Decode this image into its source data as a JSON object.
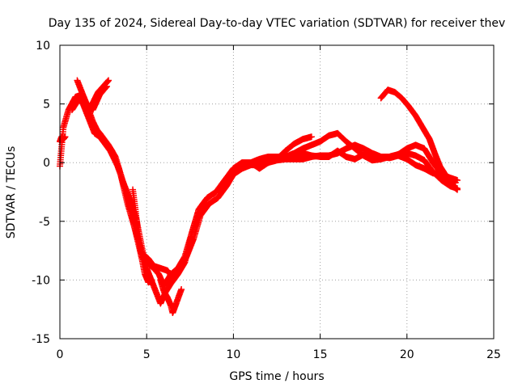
{
  "chart_data": {
    "type": "scatter",
    "title": "Day 135 of 2024, Sidereal Day-to-day VTEC variation (SDTVAR) for receiver thev",
    "xlabel": "GPS time / hours",
    "ylabel": "SDTVAR / TECUs",
    "xlim": [
      0,
      25
    ],
    "ylim": [
      -15,
      10
    ],
    "grid": true,
    "marker": "+",
    "color": "#ff0000",
    "x_ticks": [
      0,
      5,
      10,
      15,
      20,
      25
    ],
    "y_ticks": [
      -15,
      -10,
      -5,
      0,
      5,
      10
    ],
    "x_tick_labels": [
      "0",
      "5",
      "10",
      "15",
      "20",
      "25"
    ],
    "y_tick_labels": [
      "-15",
      "-10",
      "-5",
      "0",
      "5",
      "10"
    ],
    "series": [
      {
        "name": "track-1",
        "x": [
          0.0,
          0.2,
          0.5,
          0.9,
          1.3,
          1.7,
          2.2,
          2.8
        ],
        "y": [
          -0.3,
          3.0,
          4.5,
          5.6,
          5.8,
          4.5,
          6.0,
          7.0
        ]
      },
      {
        "name": "track-2",
        "x": [
          0.0,
          0.1,
          0.2,
          0.3
        ],
        "y": [
          1.8,
          2.2,
          2.0,
          2.2
        ]
      },
      {
        "name": "track-3",
        "x": [
          1.0,
          1.4,
          1.9,
          2.4,
          2.9,
          3.4,
          3.9,
          4.3,
          4.7,
          5.0,
          5.4,
          5.8,
          6.1,
          6.4,
          6.8,
          7.2,
          7.6,
          8.0,
          8.5,
          9.0,
          9.5,
          10.0,
          10.5,
          11.0,
          11.5,
          12.0,
          12.5,
          13.0,
          13.5,
          14.0,
          14.5
        ],
        "y": [
          7.0,
          5.5,
          3.5,
          2.0,
          1.0,
          -0.5,
          -3.0,
          -5.5,
          -7.5,
          -9.0,
          -10.5,
          -12.0,
          -11.0,
          -10.3,
          -9.5,
          -8.5,
          -6.0,
          -4.0,
          -3.0,
          -2.5,
          -1.5,
          -0.5,
          0.0,
          0.0,
          -0.5,
          0.0,
          0.3,
          1.0,
          1.6,
          2.0,
          2.2
        ]
      },
      {
        "name": "track-4",
        "x": [
          1.2,
          1.6,
          2.0,
          2.5,
          3.0,
          3.5,
          3.9,
          4.3,
          4.7,
          5.0,
          5.4,
          5.7,
          6.0,
          6.4,
          6.8,
          7.2,
          7.6,
          8.0,
          8.5,
          9.0,
          9.5,
          10.0,
          10.5,
          11.0,
          11.5,
          12.0,
          12.5,
          13.0,
          13.5,
          14.0,
          14.5,
          15.0,
          15.5,
          16.0,
          16.5,
          17.0,
          17.5,
          18.0,
          18.5,
          19.0,
          19.5,
          20.0,
          20.5,
          21.0,
          21.5,
          22.0,
          22.5,
          22.9
        ],
        "y": [
          5.5,
          4.0,
          2.5,
          2.0,
          1.0,
          -1.0,
          -3.5,
          -5.5,
          -8.0,
          -8.5,
          -9.0,
          -9.5,
          -10.5,
          -9.5,
          -9.0,
          -8.0,
          -6.0,
          -4.0,
          -3.0,
          -2.5,
          -1.5,
          -0.5,
          0.0,
          0.0,
          0.3,
          0.5,
          0.5,
          0.5,
          0.8,
          1.2,
          1.5,
          1.8,
          2.3,
          2.5,
          1.8,
          1.2,
          0.6,
          0.2,
          0.3,
          0.5,
          0.7,
          1.2,
          1.5,
          1.2,
          0.0,
          -1.0,
          -1.8,
          -2.3
        ]
      },
      {
        "name": "track-5",
        "x": [
          1.5,
          1.9,
          2.3,
          2.8,
          3.2,
          3.6,
          4.0,
          4.4,
          4.8,
          5.1,
          5.4,
          5.8,
          6.2,
          6.5,
          6.9,
          7.3,
          7.7,
          8.1,
          8.6,
          9.1,
          9.6,
          10.0,
          10.5,
          11.0,
          11.5,
          12.0,
          12.5,
          13.0,
          13.5,
          14.0,
          14.5,
          15.0,
          15.5,
          16.0,
          16.5,
          17.0,
          17.5,
          18.0,
          18.5,
          19.0,
          19.5,
          20.0,
          20.5,
          21.0,
          21.5,
          22.0,
          22.5,
          22.9
        ],
        "y": [
          4.5,
          3.2,
          2.5,
          1.5,
          0.5,
          -1.5,
          -3.0,
          -4.8,
          -7.8,
          -8.2,
          -8.8,
          -9.0,
          -9.2,
          -9.8,
          -9.2,
          -8.0,
          -6.5,
          -4.5,
          -3.5,
          -3.0,
          -2.0,
          -1.0,
          -0.5,
          -0.2,
          -0.2,
          0.0,
          0.2,
          0.3,
          0.3,
          0.3,
          0.5,
          0.6,
          0.6,
          0.8,
          1.2,
          1.5,
          1.2,
          0.8,
          0.5,
          0.5,
          0.7,
          0.8,
          0.6,
          0.2,
          -0.8,
          -1.5,
          -2.0,
          -2.2
        ]
      },
      {
        "name": "track-6",
        "x": [
          13.5,
          14.0,
          14.5,
          15.0,
          15.5,
          16.0,
          16.5,
          17.0,
          17.5,
          18.0,
          18.5,
          19.0,
          19.5,
          20.0,
          20.5,
          21.0,
          21.5,
          22.0,
          22.5,
          22.9
        ],
        "y": [
          0.5,
          0.8,
          0.6,
          0.5,
          0.5,
          1.0,
          0.5,
          0.3,
          0.7,
          0.5,
          0.5,
          0.4,
          0.6,
          0.3,
          -0.2,
          -0.5,
          -0.9,
          -1.0,
          -1.3,
          -1.5
        ]
      },
      {
        "name": "track-7",
        "x": [
          18.5,
          18.9,
          19.3,
          19.7,
          20.1,
          20.5,
          20.9,
          21.3,
          21.6,
          21.9,
          22.2,
          22.5,
          22.8
        ],
        "y": [
          5.5,
          6.2,
          6.0,
          5.5,
          4.8,
          4.0,
          3.0,
          2.0,
          0.8,
          -0.3,
          -1.0,
          -1.5,
          -1.7
        ]
      },
      {
        "name": "track-8",
        "x": [
          4.2,
          4.35,
          4.5,
          4.7,
          4.9,
          5.1,
          5.3
        ],
        "y": [
          -2.3,
          -4.0,
          -6.0,
          -8.0,
          -9.5,
          -10.2,
          -10.0
        ]
      },
      {
        "name": "track-9",
        "x": [
          5.8,
          6.0,
          6.2,
          6.4,
          6.5,
          6.7,
          7.0
        ],
        "y": [
          -10.0,
          -11.0,
          -11.5,
          -12.2,
          -12.8,
          -12.0,
          -10.8
        ]
      },
      {
        "name": "track-10",
        "x": [
          0.7,
          1.0,
          1.3,
          1.6,
          1.9,
          2.3,
          2.7
        ],
        "y": [
          4.5,
          5.2,
          5.5,
          4.8,
          4.5,
          5.8,
          6.5
        ]
      }
    ]
  }
}
